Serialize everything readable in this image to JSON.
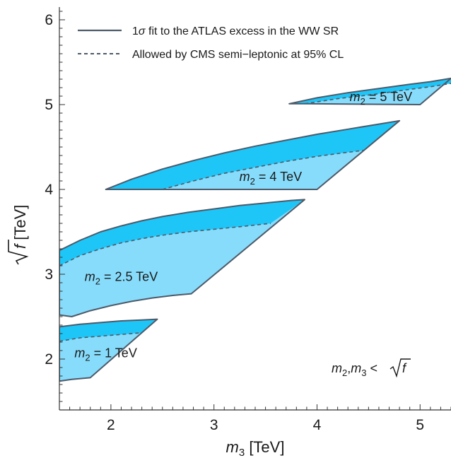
{
  "chart_data": {
    "type": "area",
    "xlabel": {
      "var": "m",
      "sub": "3",
      "unit": "[TeV]"
    },
    "ylabel": {
      "var": "f",
      "unit": "[TeV]"
    },
    "xlim": [
      1.5,
      5.3
    ],
    "ylim": [
      1.4,
      6.15
    ],
    "x_ticks": [
      2,
      3,
      4,
      5
    ],
    "y_ticks": [
      2,
      3,
      4,
      5,
      6
    ],
    "grid": false,
    "legend_position": "top-left",
    "legend": [
      {
        "pre": "1",
        "sym": "σ",
        "post": " fit to the ATLAS excess in the WW SR",
        "style": "solid"
      },
      {
        "pre": "Allowed by CMS semi−leptonic at 95% CL",
        "sym": "",
        "post": "",
        "style": "dashed"
      }
    ],
    "constraint_text": {
      "a": "m",
      "a_sub": "2",
      "sep": ",",
      "b": "m",
      "b_sub": "3",
      "rel": " < ",
      "c": "f"
    },
    "colors": {
      "light_fill": "#87dcfb",
      "dark_fill": "#1ec6f8",
      "outline": "#4c5a6a",
      "axis": "#333333"
    },
    "series": [
      {
        "m2": "1",
        "unit": "TeV",
        "label_at": [
          1.95,
          2.07
        ],
        "upper": [
          [
            1.5,
            2.38
          ],
          [
            1.7,
            2.41
          ],
          [
            1.9,
            2.43
          ],
          [
            2.1,
            2.45
          ],
          [
            2.3,
            2.46
          ],
          [
            2.45,
            2.47
          ]
        ],
        "dashed": [
          [
            1.5,
            2.21
          ],
          [
            1.7,
            2.25
          ],
          [
            1.9,
            2.27
          ],
          [
            2.1,
            2.29
          ],
          [
            2.3,
            2.31
          ]
        ],
        "lower": [
          [
            1.5,
            1.74
          ],
          [
            1.62,
            1.76
          ],
          [
            1.8,
            1.78
          ],
          [
            2.45,
            2.47
          ]
        ]
      },
      {
        "m2": "2.5",
        "unit": "TeV",
        "label_at": [
          2.1,
          2.97
        ],
        "upper": [
          [
            1.5,
            3.28
          ],
          [
            1.7,
            3.4
          ],
          [
            1.9,
            3.5
          ],
          [
            2.1,
            3.57
          ],
          [
            2.3,
            3.63
          ],
          [
            2.5,
            3.68
          ],
          [
            2.75,
            3.73
          ],
          [
            3.0,
            3.77
          ],
          [
            3.25,
            3.81
          ],
          [
            3.5,
            3.84
          ],
          [
            3.75,
            3.87
          ],
          [
            3.88,
            3.88
          ]
        ],
        "dashed": [
          [
            1.5,
            3.1
          ],
          [
            1.7,
            3.22
          ],
          [
            1.9,
            3.3
          ],
          [
            2.1,
            3.37
          ],
          [
            2.3,
            3.42
          ],
          [
            2.5,
            3.46
          ],
          [
            2.75,
            3.5
          ],
          [
            3.0,
            3.53
          ],
          [
            3.25,
            3.56
          ],
          [
            3.55,
            3.6
          ]
        ],
        "lower": [
          [
            1.5,
            2.52
          ],
          [
            1.62,
            2.5
          ],
          [
            1.8,
            2.57
          ],
          [
            2.0,
            2.63
          ],
          [
            2.2,
            2.68
          ],
          [
            2.4,
            2.72
          ],
          [
            2.6,
            2.75
          ],
          [
            2.78,
            2.77
          ],
          [
            3.88,
            3.88
          ]
        ]
      },
      {
        "m2": "4",
        "unit": "TeV",
        "label_at": [
          3.55,
          4.15
        ],
        "upper": [
          [
            1.95,
            4.0
          ],
          [
            2.2,
            4.12
          ],
          [
            2.5,
            4.24
          ],
          [
            2.8,
            4.34
          ],
          [
            3.1,
            4.43
          ],
          [
            3.4,
            4.51
          ],
          [
            3.7,
            4.58
          ],
          [
            4.0,
            4.65
          ],
          [
            4.3,
            4.71
          ],
          [
            4.6,
            4.77
          ],
          [
            4.8,
            4.81
          ]
        ],
        "dashed": [
          [
            2.5,
            4.0
          ],
          [
            2.8,
            4.1
          ],
          [
            3.1,
            4.19
          ],
          [
            3.4,
            4.26
          ],
          [
            3.7,
            4.33
          ],
          [
            4.0,
            4.39
          ],
          [
            4.25,
            4.43
          ],
          [
            4.45,
            4.46
          ]
        ],
        "lower": [
          [
            1.95,
            4.0
          ],
          [
            2.5,
            4.0
          ],
          [
            4.0,
            4.0
          ],
          [
            4.8,
            4.81
          ]
        ]
      },
      {
        "m2": "5",
        "unit": "TeV",
        "label_at": [
          4.62,
          5.09
        ],
        "upper": [
          [
            3.73,
            5.01
          ],
          [
            4.0,
            5.08
          ],
          [
            4.3,
            5.14
          ],
          [
            4.6,
            5.19
          ],
          [
            4.9,
            5.24
          ],
          [
            5.1,
            5.27
          ],
          [
            5.3,
            5.31
          ]
        ],
        "dashed": [
          [
            3.88,
            5.01
          ],
          [
            4.2,
            5.07
          ],
          [
            4.55,
            5.12
          ],
          [
            4.9,
            5.18
          ],
          [
            5.1,
            5.21
          ],
          [
            5.3,
            5.25
          ]
        ],
        "lower": [
          [
            3.73,
            5.01
          ],
          [
            3.88,
            5.01
          ],
          [
            5.0,
            5.0
          ],
          [
            5.3,
            5.31
          ]
        ]
      }
    ]
  }
}
